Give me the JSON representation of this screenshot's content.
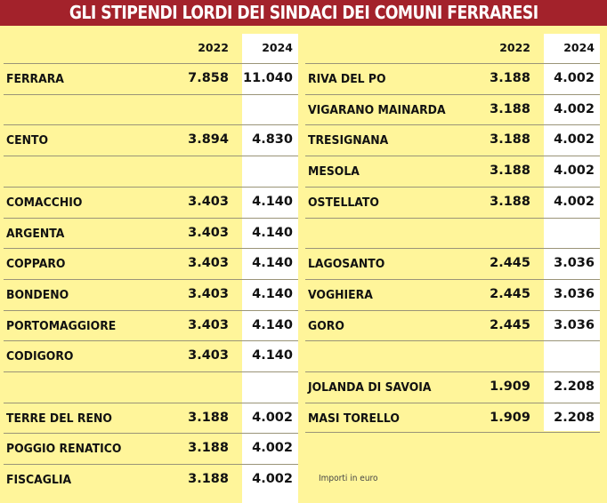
{
  "title": "GLI STIPENDI LORDI DEI SINDACI DEI COMUNI FERRARESI",
  "columns": [
    "2022",
    "2024"
  ],
  "colors": {
    "title_bg": "#a3222b",
    "background": "#fff59a",
    "highlight_col": "#ffffff"
  },
  "left_table": {
    "rows": [
      {
        "name": "FERRARA",
        "v2022": "7.858",
        "v2024": "11.040"
      },
      {
        "name": "",
        "v2022": "",
        "v2024": ""
      },
      {
        "name": "CENTO",
        "v2022": "3.894",
        "v2024": "4.830"
      },
      {
        "name": "",
        "v2022": "",
        "v2024": ""
      },
      {
        "name": "COMACCHIO",
        "v2022": "3.403",
        "v2024": "4.140"
      },
      {
        "name": "ARGENTA",
        "v2022": "3.403",
        "v2024": "4.140"
      },
      {
        "name": "COPPARO",
        "v2022": "3.403",
        "v2024": "4.140"
      },
      {
        "name": "BONDENO",
        "v2022": "3.403",
        "v2024": "4.140"
      },
      {
        "name": "PORTOMAGGIORE",
        "v2022": "3.403",
        "v2024": "4.140"
      },
      {
        "name": "CODIGORO",
        "v2022": "3.403",
        "v2024": "4.140"
      },
      {
        "name": "",
        "v2022": "",
        "v2024": ""
      },
      {
        "name": "TERRE DEL RENO",
        "v2022": "3.188",
        "v2024": "4.002"
      },
      {
        "name": "POGGIO RENATICO",
        "v2022": "3.188",
        "v2024": "4.002"
      },
      {
        "name": "FISCAGLIA",
        "v2022": "3.188",
        "v2024": "4.002"
      }
    ]
  },
  "right_table": {
    "rows": [
      {
        "name": "RIVA DEL PO",
        "v2022": "3.188",
        "v2024": "4.002"
      },
      {
        "name": "VIGARANO MAINARDA",
        "v2022": "3.188",
        "v2024": "4.002"
      },
      {
        "name": "TRESIGNANA",
        "v2022": "3.188",
        "v2024": "4.002"
      },
      {
        "name": "MESOLA",
        "v2022": "3.188",
        "v2024": "4.002"
      },
      {
        "name": "OSTELLATO",
        "v2022": "3.188",
        "v2024": "4.002"
      },
      {
        "name": "",
        "v2022": "",
        "v2024": ""
      },
      {
        "name": "LAGOSANTO",
        "v2022": "2.445",
        "v2024": "3.036"
      },
      {
        "name": "VOGHIERA",
        "v2022": "2.445",
        "v2024": "3.036"
      },
      {
        "name": "GORO",
        "v2022": "2.445",
        "v2024": "3.036"
      },
      {
        "name": "",
        "v2022": "",
        "v2024": ""
      },
      {
        "name": "JOLANDA DI SAVOIA",
        "v2022": "1.909",
        "v2024": "2.208"
      },
      {
        "name": "MASI TORELLO",
        "v2022": "1.909",
        "v2024": "2.208"
      }
    ]
  },
  "note": "Importi in euro"
}
